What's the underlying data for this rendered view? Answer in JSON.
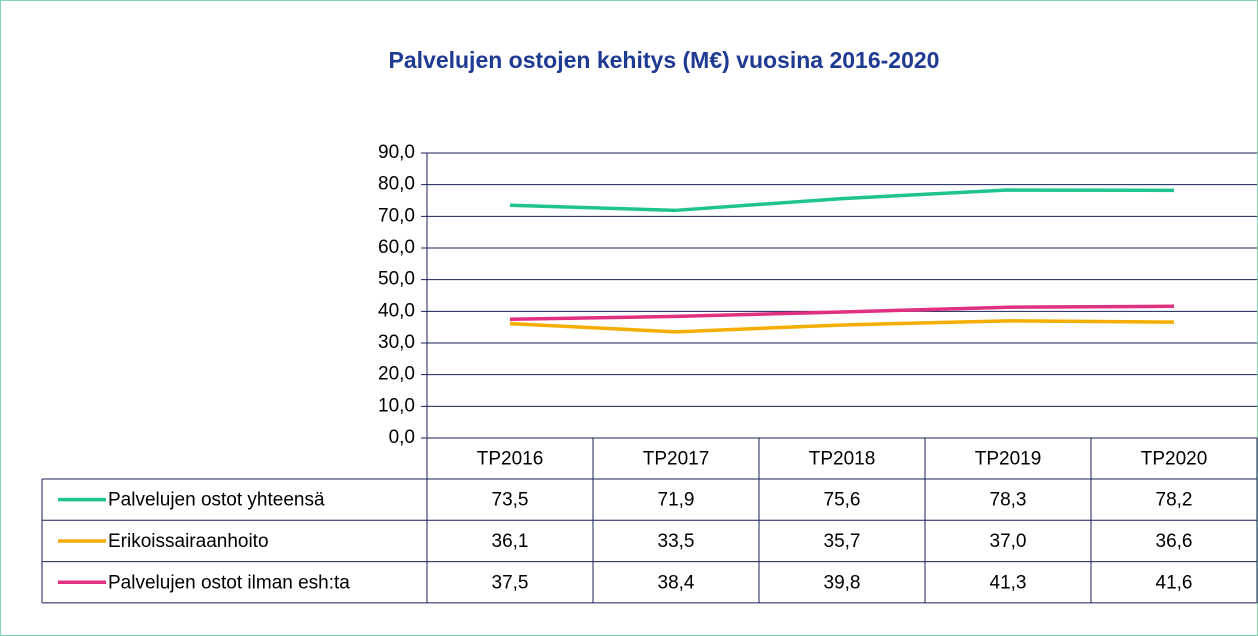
{
  "chart_data": {
    "type": "line",
    "title": "Palvelujen ostojen kehitys (M€) vuosina 2016-2020",
    "categories": [
      "TP2016",
      "TP2017",
      "TP2018",
      "TP2019",
      "TP2020"
    ],
    "series": [
      {
        "name": "Palvelujen ostot yhteensä",
        "color": "#1fc48c",
        "values": [
          73.5,
          71.9,
          75.6,
          78.3,
          78.2
        ],
        "value_labels": [
          "73,5",
          "71,9",
          "75,6",
          "78,3",
          "78,2"
        ]
      },
      {
        "name": "Erikoissairaanhoito",
        "color": "#f5ae00",
        "values": [
          36.1,
          33.5,
          35.7,
          37.0,
          36.6
        ],
        "value_labels": [
          "36,1",
          "33,5",
          "35,7",
          "37,0",
          "36,6"
        ]
      },
      {
        "name": "Palvelujen ostot ilman esh:ta",
        "color": "#e0307f",
        "values": [
          37.5,
          38.4,
          39.8,
          41.3,
          41.6
        ],
        "value_labels": [
          "37,5",
          "38,4",
          "39,8",
          "41,3",
          "41,6"
        ]
      }
    ],
    "ylim": [
      0,
      90
    ],
    "yticks": [
      {
        "value": 0,
        "label": "0,0"
      },
      {
        "value": 10,
        "label": "10,0"
      },
      {
        "value": 20,
        "label": "20,0"
      },
      {
        "value": 30,
        "label": "30,0"
      },
      {
        "value": 40,
        "label": "40,0"
      },
      {
        "value": 50,
        "label": "50,0"
      },
      {
        "value": 60,
        "label": "60,0"
      },
      {
        "value": 70,
        "label": "70,0"
      },
      {
        "value": 80,
        "label": "80,0"
      },
      {
        "value": 90,
        "label": "90,0"
      }
    ],
    "grid": true
  }
}
